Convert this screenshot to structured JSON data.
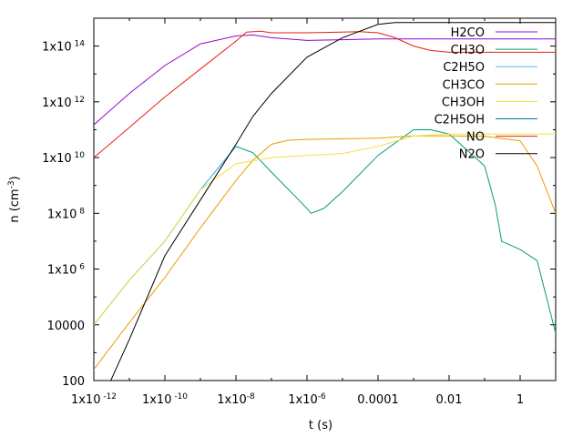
{
  "chart_data": {
    "type": "line",
    "xlabel": "t (s)",
    "ylabel": "n (cm",
    "ylabel_sup": "-3",
    "ylabel_close": ")",
    "x_scale": "log",
    "y_scale": "log",
    "xlim": [
      1e-12,
      10
    ],
    "ylim": [
      100,
      1000000000000000.0
    ],
    "x_ticks": [
      {
        "v": 1e-12,
        "base": "1x10",
        "sup": " -12"
      },
      {
        "v": 1e-10,
        "base": "1x10",
        "sup": " -10"
      },
      {
        "v": 1e-08,
        "base": "1x10",
        "sup": "-8"
      },
      {
        "v": 1e-06,
        "base": "1x10",
        "sup": "-6"
      },
      {
        "v": 0.0001,
        "base": "0.0001",
        "sup": ""
      },
      {
        "v": 0.01,
        "base": "0.01",
        "sup": ""
      },
      {
        "v": 1,
        "base": "1",
        "sup": ""
      }
    ],
    "y_ticks": [
      {
        "v": 100,
        "base": "100",
        "sup": ""
      },
      {
        "v": 10000,
        "base": "10000",
        "sup": ""
      },
      {
        "v": 1000000.0,
        "base": "1x10",
        "sup": " 6"
      },
      {
        "v": 100000000.0,
        "base": "1x10",
        "sup": " 8"
      },
      {
        "v": 10000000000.0,
        "base": "1x10",
        "sup": " 10"
      },
      {
        "v": 1000000000000.0,
        "base": "1x10",
        "sup": " 12"
      },
      {
        "v": 100000000000000.0,
        "base": "1x10",
        "sup": " 14"
      }
    ],
    "legend_position": "top-right",
    "grid": false,
    "series": [
      {
        "name": "H2CO",
        "color": "#9400d3",
        "x": [
          1e-12,
          1e-11,
          1e-10,
          1e-09,
          1e-08,
          3e-08,
          1e-07,
          1e-06,
          1e-05,
          0.0001,
          0.001,
          0.01,
          0.1,
          1,
          10
        ],
        "y": [
          150000000000.0,
          2000000000000.0,
          20000000000000.0,
          120000000000000.0,
          230000000000000.0,
          250000000000000.0,
          200000000000000.0,
          160000000000000.0,
          170000000000000.0,
          180000000000000.0,
          180000000000000.0,
          180000000000000.0,
          180000000000000.0,
          180000000000000.0,
          180000000000000.0
        ]
      },
      {
        "name": "CH3O",
        "color": "#009e73",
        "x": [
          1e-12,
          1e-11,
          1e-10,
          1e-09,
          1e-08,
          3e-08,
          1e-07,
          1e-06,
          1.3e-06,
          3e-06,
          1e-05,
          0.0001,
          0.001,
          0.003,
          0.01,
          0.1,
          0.2,
          0.3,
          1,
          3,
          10
        ],
        "y": [
          10000.0,
          400000.0,
          10000000.0,
          700000000.0,
          25000000000.0,
          15000000000.0,
          3000000000.0,
          150000000.0,
          100000000.0,
          150000000.0,
          600000000.0,
          12000000000.0,
          100000000000.0,
          100000000000.0,
          70000000000.0,
          5000000000.0,
          200000000.0,
          10000000.0,
          5000000.0,
          2000000.0,
          5000.0
        ]
      },
      {
        "name": "C2H5O",
        "color": "#56b4e9",
        "x": [
          1e-12,
          1e-11,
          1e-10,
          1e-09,
          1e-08
        ],
        "y": [
          10000.0,
          400000.0,
          10000000.0,
          700000000.0,
          25000000000.0
        ]
      },
      {
        "name": "CH3CO",
        "color": "#e69f00",
        "x": [
          1e-12,
          1e-11,
          1e-10,
          1e-09,
          1e-08,
          3e-08,
          1e-07,
          3e-07,
          1e-06,
          1e-05,
          0.0001,
          0.001,
          0.01,
          0.1,
          1,
          3,
          10
        ],
        "y": [
          250,
          12000.0,
          500000.0,
          30000000.0,
          1500000000.0,
          8000000000.0,
          30000000000.0,
          42000000000.0,
          45000000000.0,
          47000000000.0,
          50000000000.0,
          60000000000.0,
          60000000000.0,
          58000000000.0,
          40000000000.0,
          5000000000.0,
          100000000.0
        ]
      },
      {
        "name": "CH3OH",
        "color": "#f0e442",
        "x": [
          1e-12,
          1e-11,
          1e-10,
          1e-09,
          1e-08,
          1e-07,
          1e-06,
          1e-05,
          0.0001,
          0.001,
          0.01,
          0.1,
          1,
          10
        ],
        "y": [
          10000.0,
          400000.0,
          10000000.0,
          700000000.0,
          6000000000.0,
          10000000000.0,
          12000000000.0,
          14000000000.0,
          25000000000.0,
          60000000000.0,
          70000000000.0,
          70000000000.0,
          70000000000.0,
          70000000000.0
        ]
      },
      {
        "name": "C2H5OH",
        "color": "#0072b2",
        "x": [],
        "y": []
      },
      {
        "name": "NO",
        "color": "#e51e10",
        "x": [
          1e-12,
          1e-11,
          1e-10,
          1e-09,
          1e-08,
          2e-08,
          5e-08,
          1e-07,
          1e-06,
          1e-05,
          3e-05,
          0.0001,
          0.0003,
          0.001,
          0.003,
          0.01,
          0.1,
          1,
          10
        ],
        "y": [
          10000000000.0,
          120000000000.0,
          1500000000000.0,
          15000000000000.0,
          150000000000000.0,
          320000000000000.0,
          340000000000000.0,
          300000000000000.0,
          300000000000000.0,
          320000000000000.0,
          330000000000000.0,
          300000000000000.0,
          200000000000000.0,
          100000000000000.0,
          70000000000000.0,
          60000000000000.0,
          60000000000000.0,
          60000000000000.0,
          60000000000000.0
        ]
      },
      {
        "name": "N2O",
        "color": "#000000",
        "x": [
          3e-12,
          1e-11,
          1e-10,
          1e-09,
          1e-08,
          3e-08,
          1e-07,
          1e-06,
          1e-05,
          0.0001,
          0.0003,
          0.001,
          0.01,
          0.1,
          1,
          10
        ],
        "y": [
          100,
          3000.0,
          3000000.0,
          300000000.0,
          30000000000.0,
          300000000000.0,
          2000000000000.0,
          40000000000000.0,
          200000000000000.0,
          600000000000000.0,
          700000000000000.0,
          700000000000000.0,
          700000000000000.0,
          700000000000000.0,
          700000000000000.0,
          700000000000000.0
        ]
      }
    ]
  }
}
